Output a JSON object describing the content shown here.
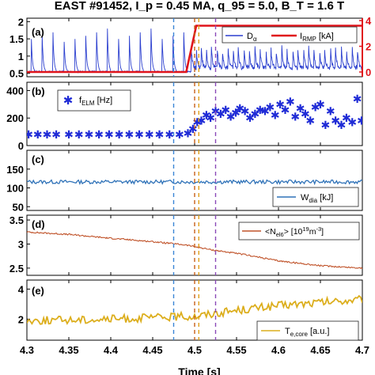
{
  "chart_data": [
    {
      "panel": "(a)",
      "type": "line",
      "title": "EAST #91452, I_p = 0.45 MA, q_95 = 5.0, B_T = 1.6 T",
      "ylim": [
        0.4,
        2.1
      ],
      "yticks": [
        0.5,
        1,
        1.5,
        2
      ],
      "ylim_right": [
        0,
        4
      ],
      "yticks_right": [
        0,
        2,
        4
      ],
      "series": [
        {
          "name": "D_α",
          "color": "#2b3fcf",
          "elm_times": [
            4.305,
            4.318,
            4.331,
            4.344,
            4.357,
            4.37,
            4.383,
            4.396,
            4.409,
            4.422,
            4.435,
            4.448,
            4.461,
            4.474,
            4.487,
            4.496,
            4.502,
            4.508,
            4.514,
            4.52,
            4.527,
            4.533,
            4.54,
            4.546,
            4.552,
            4.559,
            4.565,
            4.572,
            4.578,
            4.585,
            4.591,
            4.597,
            4.604,
            4.61,
            4.617,
            4.623,
            4.63,
            4.636,
            4.642,
            4.649,
            4.655,
            4.662,
            4.668,
            4.675,
            4.681,
            4.688,
            4.694
          ],
          "baseline": 0.55,
          "peak_before": 1.8,
          "peak_after": 1.15
        },
        {
          "name": "I_RMP [kA]",
          "color": "#e0141b",
          "axis": "right",
          "x": [
            4.3,
            4.49,
            4.502,
            4.7
          ],
          "y": [
            0,
            0,
            3.6,
            3.6
          ]
        }
      ],
      "legend": [
        "D_α",
        "I_RMP [kA]"
      ]
    },
    {
      "panel": "(b)",
      "type": "scatter",
      "ylim": [
        0,
        460
      ],
      "yticks": [
        0,
        200,
        400
      ],
      "series": [
        {
          "name": "f_ELM [Hz]",
          "color": "#1f2bd6",
          "marker": "*",
          "x": [
            4.302,
            4.313,
            4.324,
            4.335,
            4.35,
            4.362,
            4.374,
            4.386,
            4.398,
            4.41,
            4.422,
            4.434,
            4.446,
            4.458,
            4.47,
            4.482,
            4.492,
            4.498,
            4.503,
            4.508,
            4.514,
            4.519,
            4.525,
            4.531,
            4.537,
            4.543,
            4.549,
            4.554,
            4.56,
            4.566,
            4.572,
            4.578,
            4.584,
            4.59,
            4.596,
            4.602,
            4.608,
            4.614,
            4.62,
            4.626,
            4.632,
            4.638,
            4.644,
            4.65,
            4.656,
            4.662,
            4.668,
            4.675,
            4.681,
            4.688,
            4.694,
            4.699
          ],
          "y": [
            80,
            80,
            80,
            80,
            80,
            80,
            80,
            80,
            80,
            80,
            80,
            80,
            80,
            80,
            80,
            80,
            90,
            120,
            170,
            180,
            220,
            200,
            250,
            230,
            260,
            210,
            240,
            270,
            250,
            200,
            230,
            260,
            250,
            280,
            220,
            300,
            260,
            320,
            210,
            270,
            230,
            180,
            280,
            300,
            150,
            250,
            180,
            150,
            200,
            170,
            340,
            180
          ]
        }
      ]
    },
    {
      "panel": "(c)",
      "type": "line",
      "ylim": [
        40,
        200
      ],
      "yticks": [
        50,
        100,
        150
      ],
      "series": [
        {
          "name": "W_dia [kJ]",
          "color": "#2f72b8",
          "mean": 116,
          "amplitude": 5
        }
      ]
    },
    {
      "panel": "(d)",
      "type": "line",
      "ylim": [
        2.35,
        3.6
      ],
      "yticks": [
        2.5,
        3,
        3.5
      ],
      "series": [
        {
          "name": "<N_el6> [10^19 m^-3]",
          "color": "#c0532a",
          "x": [
            4.3,
            4.35,
            4.4,
            4.45,
            4.49,
            4.52,
            4.56,
            4.6,
            4.65,
            4.7
          ],
          "y": [
            3.25,
            3.2,
            3.12,
            3.05,
            2.98,
            2.88,
            2.78,
            2.65,
            2.55,
            2.5
          ]
        }
      ]
    },
    {
      "panel": "(e)",
      "type": "line",
      "ylim": [
        0.6,
        4.6
      ],
      "yticks": [
        2,
        4
      ],
      "series": [
        {
          "name": "T_e,core [a.u.]",
          "color": "#dcae1d",
          "x": [
            4.3,
            4.4,
            4.5,
            4.55,
            4.6,
            4.65,
            4.7
          ],
          "y": [
            1.9,
            2.0,
            2.2,
            2.6,
            2.9,
            3.1,
            3.3
          ]
        }
      ]
    }
  ],
  "xaxis": {
    "xlim": [
      4.3,
      4.7
    ],
    "ticks": [
      "4.3",
      "4.35",
      "4.4",
      "4.45",
      "4.5",
      "4.55",
      "4.6",
      "4.65",
      "4.7"
    ],
    "label": "Time [s]"
  },
  "vlines": [
    {
      "x": 4.475,
      "color": "#3a86d6"
    },
    {
      "x": 4.5,
      "color": "#c7601b"
    },
    {
      "x": 4.505,
      "color": "#e0a11b"
    },
    {
      "x": 4.525,
      "color": "#8a4ab8"
    }
  ],
  "text": {
    "title": "EAST #91452, I_p = 0.45 MA, q_95 = 5.0, B_T = 1.6 T",
    "panel_a": "(a)",
    "panel_b": "(b)",
    "panel_c": "(c)",
    "panel_d": "(d)",
    "panel_e": "(e)",
    "leg_a1_base": "D",
    "leg_a1_sub": "α",
    "leg_a2_base": "I",
    "leg_a2_sub": "RMP",
    "leg_a2_rest": " [kA]",
    "leg_b_base": "f",
    "leg_b_sub": "ELM",
    "leg_b_rest": " [Hz]",
    "leg_c_base": "W",
    "leg_c_sub": "dia",
    "leg_c_rest": " [kJ]",
    "leg_d_base": "<N",
    "leg_d_sub": "el6",
    "leg_d_mid": "> [10",
    "leg_d_sup1": "19",
    "leg_d_mid2": "m",
    "leg_d_sup2": "-3",
    "leg_d_end": "]",
    "leg_e_base": "T",
    "leg_e_sub": "e,core",
    "leg_e_rest": " [a.u.]",
    "xlabel": "Time [s]"
  }
}
